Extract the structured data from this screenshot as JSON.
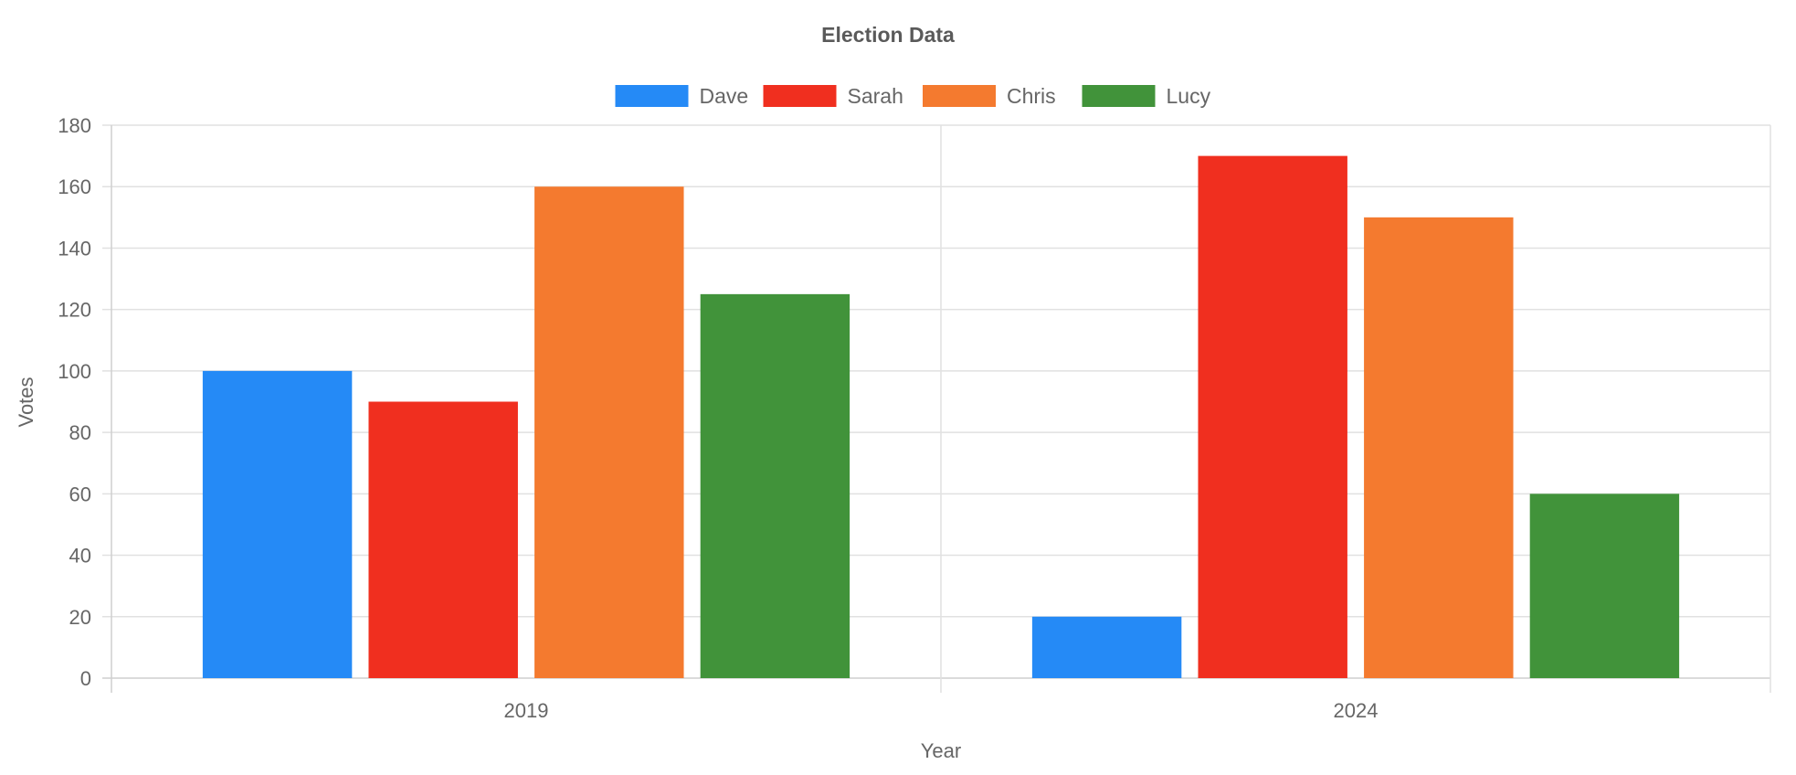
{
  "chart_data": {
    "type": "bar",
    "title": "Election Data",
    "xlabel": "Year",
    "ylabel": "Votes",
    "categories": [
      "2019",
      "2024"
    ],
    "series": [
      {
        "name": "Dave",
        "color": "#258AF6",
        "values": [
          100,
          20
        ]
      },
      {
        "name": "Sarah",
        "color": "#F02F1F",
        "values": [
          90,
          170
        ]
      },
      {
        "name": "Chris",
        "color": "#F47A2F",
        "values": [
          160,
          150
        ]
      },
      {
        "name": "Lucy",
        "color": "#41933A",
        "values": [
          125,
          60
        ]
      }
    ],
    "ylim": [
      0,
      180
    ],
    "yticks": [
      0,
      20,
      40,
      60,
      80,
      100,
      120,
      140,
      160,
      180
    ],
    "grid": true,
    "legend": "top-center"
  }
}
